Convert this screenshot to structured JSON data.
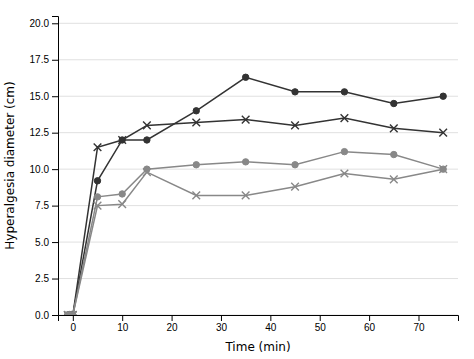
{
  "chart_data": {
    "type": "line",
    "x": [
      -1,
      0,
      5,
      10,
      15,
      25,
      35,
      45,
      55,
      65,
      75
    ],
    "series": [
      {
        "color": "#333333",
        "marker": "circle",
        "line_style": "solid",
        "values": [
          0,
          0,
          9.2,
          12.0,
          12.0,
          14.0,
          16.3,
          15.3,
          15.3,
          14.5,
          15.0
        ]
      },
      {
        "color": "#333333",
        "marker": "cross",
        "line_style": "solid",
        "values": [
          0,
          0,
          11.5,
          12.0,
          13.0,
          13.2,
          13.4,
          13.0,
          13.5,
          12.8,
          12.5
        ]
      },
      {
        "color": "#888888",
        "marker": "circle",
        "line_style": "solid",
        "values": [
          0,
          0,
          8.1,
          8.3,
          10.0,
          10.3,
          10.5,
          10.3,
          11.2,
          11.0,
          10.0
        ]
      },
      {
        "color": "#888888",
        "marker": "cross",
        "line_style": "solid",
        "values": [
          0,
          0,
          7.5,
          7.6,
          9.8,
          8.2,
          8.2,
          8.8,
          9.7,
          9.3,
          10.0
        ]
      }
    ],
    "xlim": [
      -3,
      78
    ],
    "ylim": [
      0.0,
      20.5
    ],
    "xticks": [
      0,
      10,
      20,
      30,
      40,
      50,
      60,
      70
    ],
    "yticks": [
      {
        "value": 0.0,
        "label": "0.0"
      },
      {
        "value": 2.5,
        "label": "2.5"
      },
      {
        "value": 5.0,
        "label": "5.0"
      },
      {
        "value": 7.5,
        "label": "7.5"
      },
      {
        "value": 10.0,
        "label": "10.0"
      },
      {
        "value": 12.5,
        "label": "12.5"
      },
      {
        "value": 15.0,
        "label": "15.0"
      },
      {
        "value": 17.5,
        "label": "17.5"
      },
      {
        "value": 20.0,
        "label": "20.0"
      }
    ],
    "xlabel": "Time (min)",
    "ylabel": "Hyperalgesia diameter (cm)",
    "grid": "y"
  }
}
